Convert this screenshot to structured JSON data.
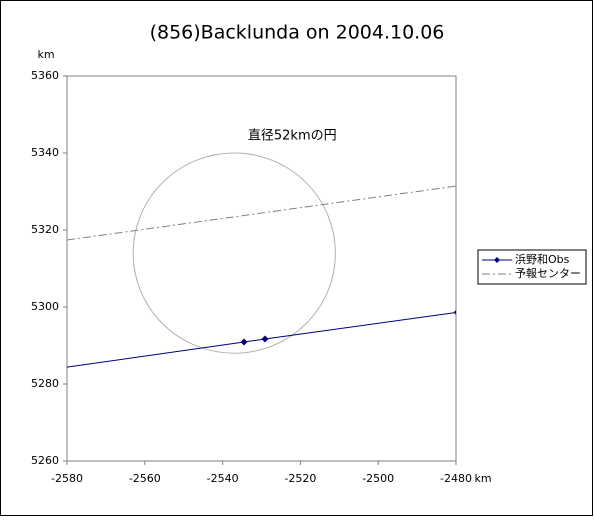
{
  "chart_data": {
    "type": "line",
    "title": "(856)Backlunda on 2004.10.06",
    "x_label": "km",
    "y_label": "km",
    "xlim": [
      -2580,
      -2480
    ],
    "xticks": [
      -2580,
      -2560,
      -2540,
      -2520,
      -2500,
      -2480
    ],
    "ylim": [
      5260,
      5360
    ],
    "yticks": [
      5260,
      5280,
      5300,
      5320,
      5340,
      5360
    ],
    "series": [
      {
        "name": "浜野和Obs",
        "color": "#000080",
        "dash": "solid",
        "markers": true,
        "x": [
          -2581.3,
          -2534.5,
          -2529.1,
          -2479.7
        ],
        "values": [
          5284.2,
          5290.9,
          5291.7,
          5298.6
        ]
      },
      {
        "name": "予報センター",
        "color": "#808080",
        "dash": "dashdot",
        "markers": false,
        "x": [
          -2580,
          -2480
        ],
        "values": [
          5317.4,
          5331.4
        ]
      }
    ],
    "circle": {
      "label": "直径52kmの円",
      "center_x": -2537,
      "center_y": 5314,
      "radius": 26,
      "color": "#b0b0b0"
    },
    "legend": "right"
  }
}
